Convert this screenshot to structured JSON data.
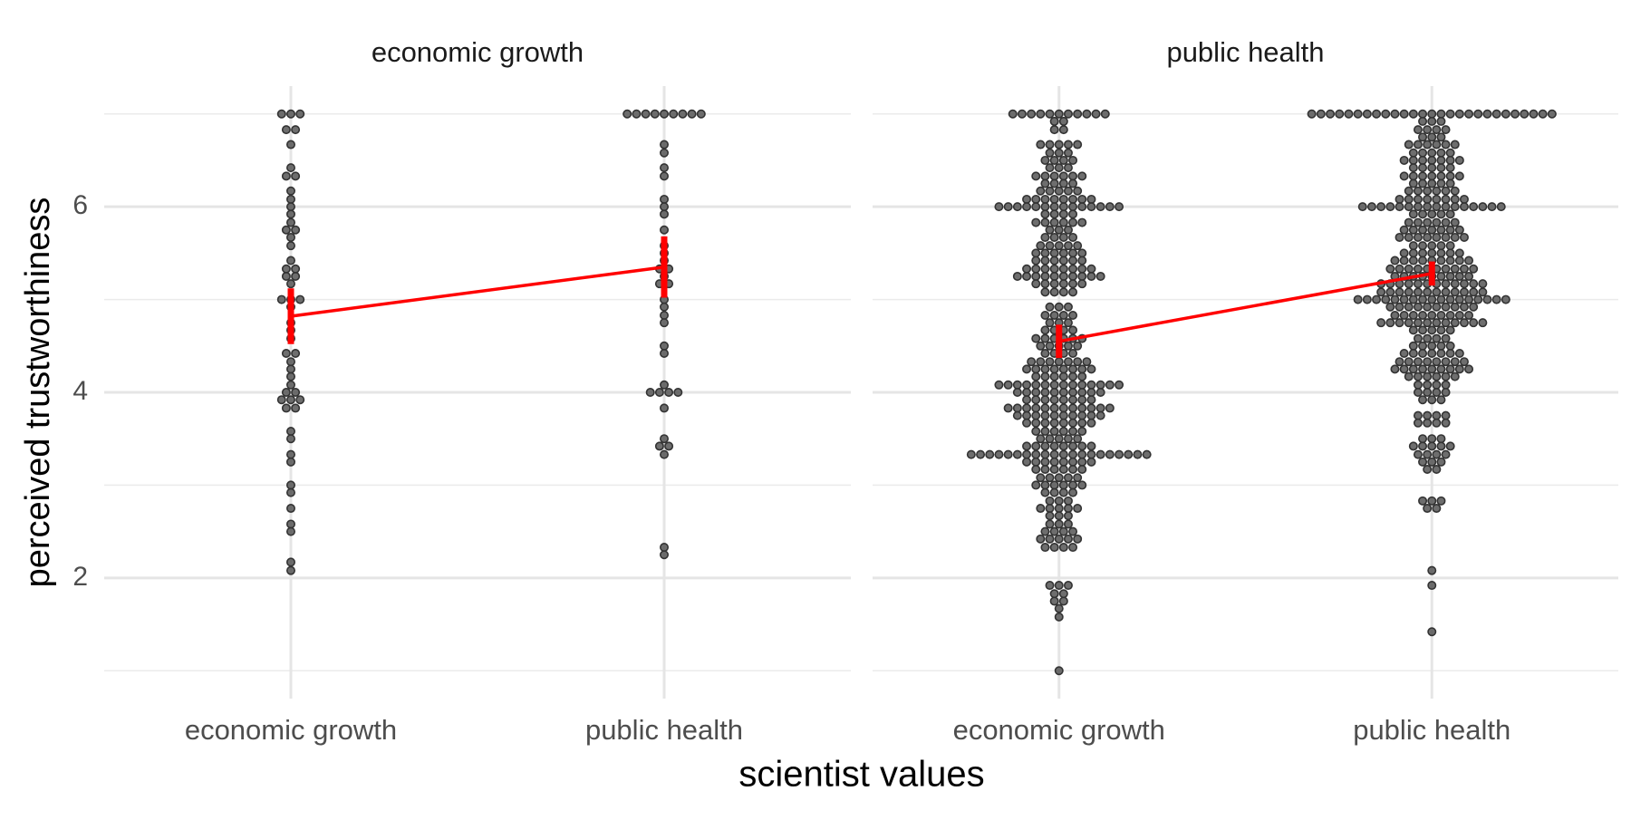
{
  "chart_data": {
    "type": "dotplot",
    "ylabel": "perceived trustworthiness",
    "xlabel": "scientist values",
    "ylim": [
      0.7,
      7.3
    ],
    "yticks": [
      2,
      4,
      6
    ],
    "minor_yticks": [
      1,
      3,
      5,
      7
    ],
    "grid": true,
    "point_color": "#555555",
    "summary_color": "#ff0000",
    "facets": [
      {
        "title": "economic growth",
        "categories": [
          "economic growth",
          "public health"
        ],
        "mean": [
          4.82,
          5.35
        ],
        "error": [
          0.3,
          0.33
        ],
        "points": [
          [
            7,
            7,
            7,
            6.83,
            6.83,
            6.67,
            6.42,
            6.33,
            6.33,
            6.17,
            6.08,
            6,
            5.92,
            5.83,
            5.75,
            5.75,
            5.67,
            5.58,
            5.42,
            5.33,
            5.33,
            5.25,
            5.25,
            5.17,
            5,
            5,
            5,
            4.92,
            4.75,
            4.67,
            4.58,
            4.42,
            4.42,
            4.33,
            4.25,
            4.17,
            4.08,
            4,
            4,
            3.92,
            3.92,
            3.92,
            3.83,
            3.83,
            3.58,
            3.5,
            3.33,
            3.25,
            3,
            2.92,
            2.75,
            2.58,
            2.5,
            2.17,
            2.08
          ],
          [
            7,
            7,
            7,
            7,
            7,
            7,
            7,
            7,
            7,
            6.67,
            6.58,
            6.42,
            6.33,
            6.08,
            6,
            5.92,
            5.75,
            5.58,
            5.5,
            5.42,
            5.33,
            5.33,
            5.25,
            5.17,
            5.17,
            5,
            4.92,
            4.83,
            4.75,
            4.5,
            4.42,
            4.08,
            4,
            4,
            4,
            4,
            3.83,
            3.5,
            3.42,
            3.42,
            3.33,
            2.33,
            2.25
          ]
        ]
      },
      {
        "title": "public health",
        "categories": [
          "economic growth",
          "public health"
        ],
        "mean": [
          4.55,
          5.28
        ],
        "error": [
          0.18,
          0.13
        ],
        "points": [
          [
            7,
            7,
            7,
            7,
            7,
            7,
            7,
            7,
            7,
            7,
            7,
            6.92,
            6.92,
            6.83,
            6.83,
            6.67,
            6.67,
            6.67,
            6.67,
            6.67,
            6.58,
            6.58,
            6.58,
            6.5,
            6.5,
            6.5,
            6.5,
            6.42,
            6.42,
            6.42,
            6.33,
            6.33,
            6.33,
            6.33,
            6.33,
            6.33,
            6.25,
            6.25,
            6.25,
            6.25,
            6.17,
            6.17,
            6.17,
            6.17,
            6.17,
            6.08,
            6.08,
            6.08,
            6.08,
            6.08,
            6.08,
            6.08,
            6.08,
            6,
            6,
            6,
            6,
            6,
            6,
            6,
            6,
            6,
            6,
            6,
            6,
            6,
            6,
            5.92,
            5.92,
            5.92,
            5.92,
            5.83,
            5.83,
            5.83,
            5.83,
            5.83,
            5.83,
            5.75,
            5.75,
            5.75,
            5.67,
            5.67,
            5.67,
            5.67,
            5.58,
            5.58,
            5.58,
            5.58,
            5.58,
            5.5,
            5.5,
            5.5,
            5.5,
            5.5,
            5.5,
            5.42,
            5.42,
            5.42,
            5.42,
            5.42,
            5.42,
            5.33,
            5.33,
            5.33,
            5.33,
            5.33,
            5.33,
            5.33,
            5.33,
            5.25,
            5.25,
            5.25,
            5.25,
            5.25,
            5.25,
            5.25,
            5.25,
            5.25,
            5.25,
            5.17,
            5.17,
            5.17,
            5.17,
            5.17,
            5.17,
            5.08,
            5.08,
            5.08,
            5.08,
            4.92,
            4.92,
            4.92,
            4.83,
            4.83,
            4.83,
            4.83,
            4.75,
            4.75,
            4.75,
            4.67,
            4.67,
            4.67,
            4.67,
            4.58,
            4.58,
            4.58,
            4.58,
            4.58,
            4.58,
            4.5,
            4.5,
            4.5,
            4.5,
            4.5,
            4.42,
            4.42,
            4.42,
            4.42,
            4.33,
            4.33,
            4.33,
            4.33,
            4.33,
            4.33,
            4.33,
            4.25,
            4.25,
            4.25,
            4.25,
            4.25,
            4.25,
            4.25,
            4.25,
            4.17,
            4.17,
            4.17,
            4.17,
            4.17,
            4.17,
            4.08,
            4.08,
            4.08,
            4.08,
            4.08,
            4.08,
            4.08,
            4.08,
            4.08,
            4.08,
            4.08,
            4.08,
            4.08,
            4.08,
            4,
            4,
            4,
            4,
            4,
            4,
            4,
            4,
            4,
            4,
            3.92,
            3.92,
            3.92,
            3.92,
            3.92,
            3.92,
            3.92,
            3.92,
            3.83,
            3.83,
            3.83,
            3.83,
            3.83,
            3.83,
            3.83,
            3.83,
            3.83,
            3.83,
            3.83,
            3.83,
            3.75,
            3.75,
            3.75,
            3.75,
            3.75,
            3.75,
            3.75,
            3.75,
            3.75,
            3.75,
            3.67,
            3.67,
            3.67,
            3.67,
            3.67,
            3.67,
            3.67,
            3.67,
            3.58,
            3.58,
            3.58,
            3.58,
            3.58,
            3.58,
            3.5,
            3.5,
            3.5,
            3.5,
            3.5,
            3.42,
            3.42,
            3.42,
            3.42,
            3.42,
            3.42,
            3.42,
            3.42,
            3.33,
            3.33,
            3.33,
            3.33,
            3.33,
            3.33,
            3.33,
            3.33,
            3.33,
            3.33,
            3.33,
            3.33,
            3.33,
            3.33,
            3.33,
            3.33,
            3.33,
            3.33,
            3.33,
            3.33,
            3.25,
            3.25,
            3.25,
            3.25,
            3.25,
            3.25,
            3.25,
            3.25,
            3.17,
            3.17,
            3.17,
            3.17,
            3.17,
            3.17,
            3.08,
            3.08,
            3.08,
            3.08,
            3.08,
            3,
            3,
            3,
            3,
            3,
            3,
            2.92,
            2.92,
            2.92,
            2.92,
            2.83,
            2.83,
            2.83,
            2.75,
            2.75,
            2.75,
            2.75,
            2.75,
            2.67,
            2.67,
            2.67,
            2.58,
            2.58,
            2.58,
            2.5,
            2.5,
            2.5,
            2.5,
            2.42,
            2.42,
            2.42,
            2.42,
            2.42,
            2.33,
            2.33,
            2.33,
            2.33,
            1.92,
            1.92,
            1.92,
            1.83,
            1.83,
            1.75,
            1.75,
            1.67,
            1.58,
            1
          ],
          [
            7,
            7,
            7,
            7,
            7,
            7,
            7,
            7,
            7,
            7,
            7,
            7,
            7,
            7,
            7,
            7,
            7,
            7,
            7,
            7,
            7,
            7,
            7,
            7,
            7,
            7,
            7,
            6.92,
            6.92,
            6.92,
            6.83,
            6.83,
            6.83,
            6.83,
            6.75,
            6.75,
            6.75,
            6.67,
            6.67,
            6.67,
            6.67,
            6.67,
            6.67,
            6.58,
            6.58,
            6.58,
            6.58,
            6.58,
            6.5,
            6.5,
            6.5,
            6.5,
            6.5,
            6.5,
            6.5,
            6.42,
            6.42,
            6.42,
            6.42,
            6.42,
            6.33,
            6.33,
            6.33,
            6.33,
            6.33,
            6.33,
            6.33,
            6.25,
            6.25,
            6.25,
            6.25,
            6.25,
            6.17,
            6.17,
            6.17,
            6.17,
            6.17,
            6.17,
            6.08,
            6.08,
            6.08,
            6.08,
            6.08,
            6.08,
            6.08,
            6.08,
            6,
            6,
            6,
            6,
            6,
            6,
            6,
            6,
            6,
            6,
            6,
            6,
            6,
            6,
            6,
            6,
            5.92,
            5.92,
            5.92,
            5.92,
            5.92,
            5.83,
            5.83,
            5.83,
            5.83,
            5.83,
            5.83,
            5.75,
            5.75,
            5.75,
            5.75,
            5.75,
            5.75,
            5.75,
            5.67,
            5.67,
            5.67,
            5.67,
            5.67,
            5.67,
            5.67,
            5.67,
            5.58,
            5.58,
            5.58,
            5.58,
            5.58,
            5.5,
            5.5,
            5.5,
            5.5,
            5.5,
            5.5,
            5.5,
            5.42,
            5.42,
            5.42,
            5.42,
            5.42,
            5.42,
            5.42,
            5.42,
            5.42,
            5.33,
            5.33,
            5.33,
            5.33,
            5.33,
            5.33,
            5.33,
            5.33,
            5.33,
            5.33,
            5.25,
            5.25,
            5.25,
            5.25,
            5.25,
            5.25,
            5.25,
            5.25,
            5.25,
            5.17,
            5.17,
            5.17,
            5.17,
            5.17,
            5.17,
            5.17,
            5.17,
            5.17,
            5.17,
            5.17,
            5.17,
            5.08,
            5.08,
            5.08,
            5.08,
            5.08,
            5.08,
            5.08,
            5.08,
            5.08,
            5.08,
            5.08,
            5.08,
            5,
            5,
            5,
            5,
            5,
            5,
            5,
            5,
            5,
            5,
            5,
            5,
            5,
            5,
            5,
            5,
            5,
            4.92,
            4.92,
            4.92,
            4.92,
            4.92,
            4.92,
            4.92,
            4.92,
            4.92,
            4.92,
            4.83,
            4.83,
            4.83,
            4.83,
            4.83,
            4.83,
            4.83,
            4.83,
            4.83,
            4.75,
            4.75,
            4.75,
            4.75,
            4.75,
            4.75,
            4.75,
            4.75,
            4.75,
            4.75,
            4.75,
            4.75,
            4.67,
            4.67,
            4.67,
            4.67,
            4.67,
            4.58,
            4.58,
            4.58,
            4.58,
            4.5,
            4.5,
            4.5,
            4.5,
            4.5,
            4.42,
            4.42,
            4.42,
            4.42,
            4.42,
            4.42,
            4.42,
            4.33,
            4.33,
            4.33,
            4.33,
            4.33,
            4.33,
            4.33,
            4.33,
            4.25,
            4.25,
            4.25,
            4.25,
            4.25,
            4.25,
            4.25,
            4.25,
            4.25,
            4.17,
            4.17,
            4.17,
            4.17,
            4.17,
            4.17,
            4.08,
            4.08,
            4.08,
            4.08,
            4,
            4,
            4,
            4,
            3.92,
            3.92,
            3.92,
            3.75,
            3.75,
            3.75,
            3.75,
            3.67,
            3.67,
            3.67,
            3.67,
            3.5,
            3.5,
            3.5,
            3.42,
            3.42,
            3.42,
            3.42,
            3.42,
            3.33,
            3.33,
            3.33,
            3.33,
            3.25,
            3.25,
            3.25,
            3.17,
            3.17,
            2.83,
            2.83,
            2.83,
            2.75,
            2.75,
            2.08,
            1.92,
            1.42
          ]
        ]
      }
    ]
  }
}
